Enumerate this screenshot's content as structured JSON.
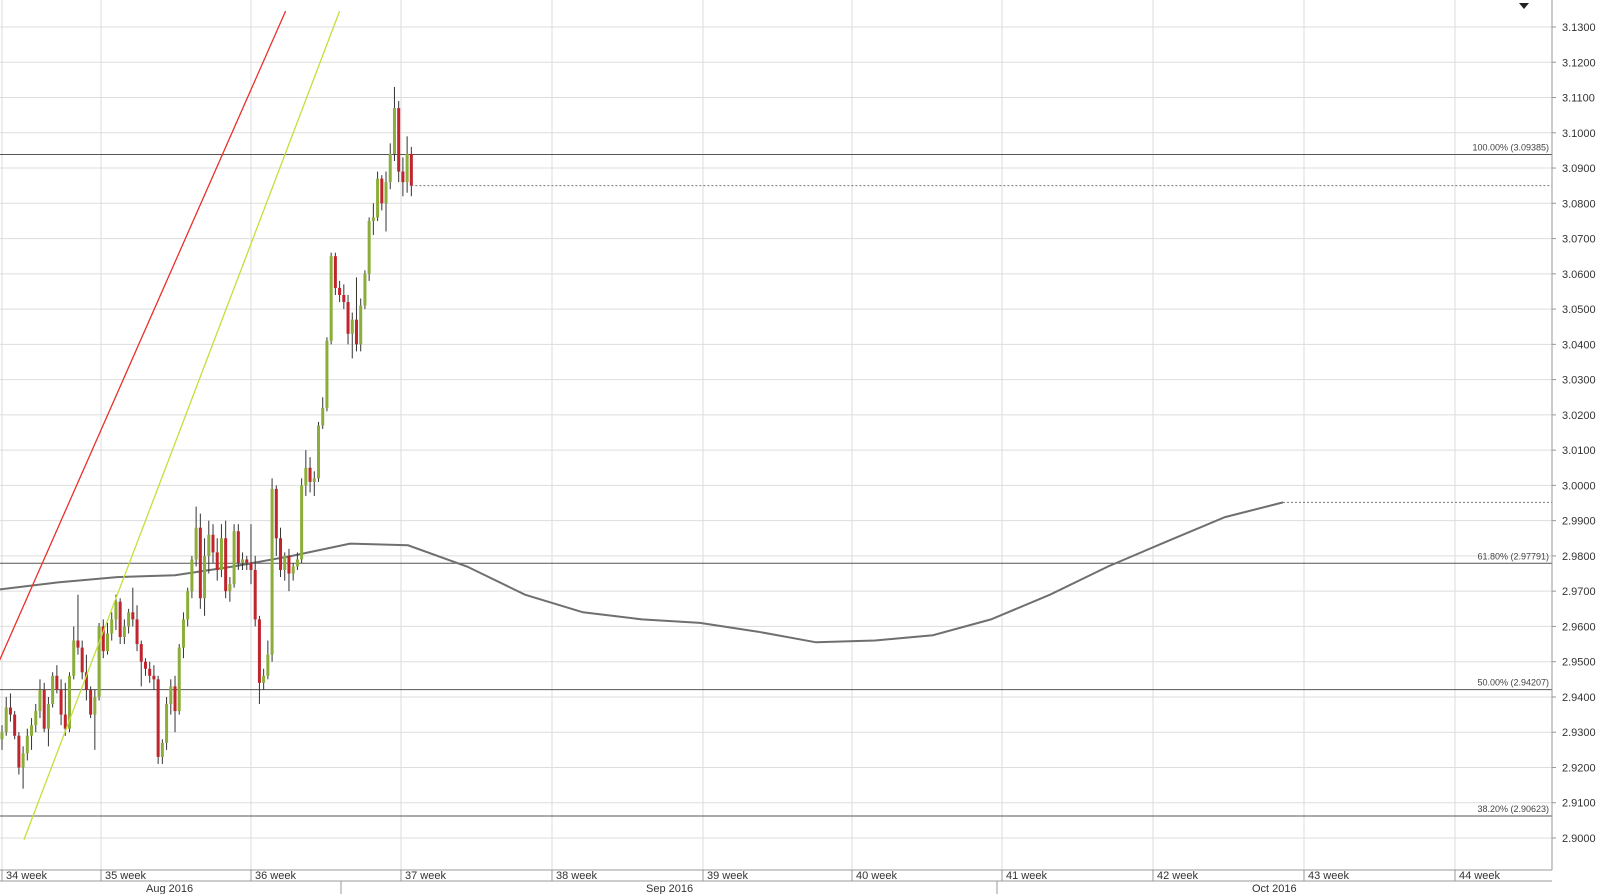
{
  "chart_data": {
    "type": "candlestick",
    "y_axis": {
      "min": 2.895,
      "max": 3.1345,
      "ticks": [
        "2.9000",
        "2.9100",
        "2.9200",
        "2.9300",
        "2.9400",
        "2.9500",
        "2.9600",
        "2.9700",
        "2.9800",
        "2.9900",
        "3.0000",
        "3.0100",
        "3.0200",
        "3.0300",
        "3.0400",
        "3.0500",
        "3.0600",
        "3.0700",
        "3.0800",
        "3.0900",
        "3.1000",
        "3.1100",
        "3.1200",
        "3.1300"
      ],
      "position": "right"
    },
    "x_axis": {
      "weeks": [
        "34 week",
        "35 week",
        "36 week",
        "37 week",
        "38 week",
        "39 week",
        "40 week",
        "41 week",
        "42 week",
        "43 week",
        "44 week"
      ],
      "months": [
        "Aug 2016",
        "Sep 2016",
        "Oct 2016"
      ]
    },
    "fib_levels": [
      {
        "label": "100.00% (3.09385)",
        "value": 3.09385
      },
      {
        "label": "61.80% (2.97791)",
        "value": 2.97791
      },
      {
        "label": "50.00% (2.94207)",
        "value": 2.94207
      },
      {
        "label": "38.20% (2.90623)",
        "value": 2.90623
      }
    ],
    "current_price": {
      "label": "3.08501",
      "value": 3.08501,
      "color": "#7a9a2a"
    },
    "moving_average_last": {
      "label": "2.99518",
      "value": 2.99518,
      "color": "#6f6f6f"
    },
    "ma_series": [
      2.9705,
      2.9725,
      2.974,
      2.9745,
      2.977,
      2.98,
      2.9835,
      2.983,
      2.977,
      2.969,
      2.964,
      2.962,
      2.961,
      2.9585,
      2.9555,
      2.956,
      2.9575,
      2.962,
      2.969,
      2.977,
      2.984,
      2.991,
      2.99518
    ],
    "channel_lines": [
      {
        "name": "upper",
        "color": "#e8312b",
        "points": [
          [
            -17.3,
            2.905
          ],
          [
            67.2,
            3.1345
          ]
        ]
      },
      {
        "name": "lower",
        "color": "#c3e03a",
        "points": [
          [
            5.2,
            2.8995
          ],
          [
            80.0,
            3.1345
          ]
        ]
      }
    ],
    "colors": {
      "bull": "#8bad3a",
      "bear": "#c0242c",
      "wick": "#333333",
      "grid": "#dddddd",
      "fib": "#555555"
    },
    "candles": [
      [
        2.928,
        2.932,
        2.925,
        2.93
      ],
      [
        2.93,
        2.94,
        2.929,
        2.937
      ],
      [
        2.937,
        2.941,
        2.933,
        2.935
      ],
      [
        2.935,
        2.936,
        2.928,
        2.929
      ],
      [
        2.929,
        2.93,
        2.918,
        2.92
      ],
      [
        2.92,
        2.926,
        2.914,
        2.924
      ],
      [
        2.924,
        2.931,
        2.922,
        2.929
      ],
      [
        2.929,
        2.934,
        2.925,
        2.932
      ],
      [
        2.932,
        2.938,
        2.93,
        2.936
      ],
      [
        2.936,
        2.945,
        2.934,
        2.942
      ],
      [
        2.942,
        2.944,
        2.93,
        2.931
      ],
      [
        2.931,
        2.94,
        2.926,
        2.938
      ],
      [
        2.938,
        2.947,
        2.937,
        2.946
      ],
      [
        2.946,
        2.949,
        2.941,
        2.942
      ],
      [
        2.942,
        2.945,
        2.932,
        2.935
      ],
      [
        2.935,
        2.944,
        2.929,
        2.931
      ],
      [
        2.931,
        2.947,
        2.93,
        2.946
      ],
      [
        2.946,
        2.96,
        2.945,
        2.956
      ],
      [
        2.956,
        2.969,
        2.952,
        2.954
      ],
      [
        2.954,
        2.956,
        2.945,
        2.947
      ],
      [
        2.947,
        2.952,
        2.939,
        2.942
      ],
      [
        2.942,
        2.943,
        2.934,
        2.935
      ],
      [
        2.935,
        2.942,
        2.925,
        2.94
      ],
      [
        2.94,
        2.961,
        2.939,
        2.96
      ],
      [
        2.96,
        2.962,
        2.951,
        2.953
      ],
      [
        2.953,
        2.961,
        2.952,
        2.958
      ],
      [
        2.958,
        2.964,
        2.956,
        2.962
      ],
      [
        2.962,
        2.969,
        2.959,
        2.967
      ],
      [
        2.967,
        2.968,
        2.955,
        2.957
      ],
      [
        2.957,
        2.962,
        2.955,
        2.96
      ],
      [
        2.96,
        2.965,
        2.958,
        2.964
      ],
      [
        2.964,
        2.971,
        2.96,
        2.962
      ],
      [
        2.962,
        2.966,
        2.953,
        2.955
      ],
      [
        2.955,
        2.956,
        2.943,
        2.95
      ],
      [
        2.95,
        2.951,
        2.946,
        2.948
      ],
      [
        2.948,
        2.95,
        2.944,
        2.946
      ],
      [
        2.946,
        2.949,
        2.942,
        2.945
      ],
      [
        2.945,
        2.946,
        2.921,
        2.923
      ],
      [
        2.923,
        2.928,
        2.921,
        2.927
      ],
      [
        2.927,
        2.94,
        2.925,
        2.938
      ],
      [
        2.938,
        2.945,
        2.935,
        2.943
      ],
      [
        2.943,
        2.946,
        2.93,
        2.936
      ],
      [
        2.936,
        2.955,
        2.935,
        2.954
      ],
      [
        2.954,
        2.964,
        2.951,
        2.962
      ],
      [
        2.962,
        2.971,
        2.96,
        2.97
      ],
      [
        2.97,
        2.98,
        2.968,
        2.979
      ],
      [
        2.979,
        2.994,
        2.977,
        2.988
      ],
      [
        2.988,
        2.992,
        2.965,
        2.968
      ],
      [
        2.968,
        2.985,
        2.963,
        2.98
      ],
      [
        2.98,
        2.99,
        2.975,
        2.986
      ],
      [
        2.986,
        2.989,
        2.978,
        2.981
      ],
      [
        2.981,
        2.985,
        2.973,
        2.976
      ],
      [
        2.976,
        2.989,
        2.974,
        2.985
      ],
      [
        2.985,
        2.99,
        2.968,
        2.97
      ],
      [
        2.97,
        2.974,
        2.967,
        2.972
      ],
      [
        2.972,
        2.989,
        2.971,
        2.987
      ],
      [
        2.987,
        2.989,
        2.976,
        2.978
      ],
      [
        2.978,
        2.981,
        2.976,
        2.979
      ],
      [
        2.979,
        2.98,
        2.976,
        2.978
      ],
      [
        2.978,
        2.989,
        2.972,
        2.976
      ],
      [
        2.976,
        2.98,
        2.96,
        2.962
      ],
      [
        2.962,
        2.963,
        2.938,
        2.944
      ],
      [
        2.944,
        2.948,
        2.942,
        2.946
      ],
      [
        2.946,
        2.956,
        2.945,
        2.952
      ],
      [
        2.952,
        3.002,
        2.95,
        2.999
      ],
      [
        2.999,
        3.0,
        2.98,
        2.985
      ],
      [
        2.985,
        2.988,
        2.974,
        2.976
      ],
      [
        2.976,
        2.981,
        2.973,
        2.98
      ],
      [
        2.98,
        2.982,
        2.97,
        2.975
      ],
      [
        2.975,
        2.978,
        2.973,
        2.977
      ],
      [
        2.977,
        2.981,
        2.976,
        2.979
      ],
      [
        2.979,
        3.002,
        2.978,
        3.0
      ],
      [
        3.0,
        3.01,
        2.997,
        3.005
      ],
      [
        3.005,
        3.008,
        2.998,
        3.001
      ],
      [
        3.001,
        3.004,
        2.997,
        3.002
      ],
      [
        3.002,
        3.018,
        3.001,
        3.017
      ],
      [
        3.017,
        3.025,
        3.016,
        3.022
      ],
      [
        3.022,
        3.042,
        3.021,
        3.041
      ],
      [
        3.041,
        3.066,
        3.04,
        3.065
      ],
      [
        3.065,
        3.066,
        3.054,
        3.056
      ],
      [
        3.056,
        3.058,
        3.052,
        3.054
      ],
      [
        3.054,
        3.057,
        3.05,
        3.052
      ],
      [
        3.052,
        3.054,
        3.04,
        3.043
      ],
      [
        3.043,
        3.049,
        3.036,
        3.047
      ],
      [
        3.047,
        3.059,
        3.038,
        3.04
      ],
      [
        3.04,
        3.053,
        3.038,
        3.051
      ],
      [
        3.051,
        3.061,
        3.05,
        3.06
      ],
      [
        3.06,
        3.076,
        3.058,
        3.075
      ],
      [
        3.075,
        3.08,
        3.071,
        3.076
      ],
      [
        3.076,
        3.089,
        3.075,
        3.087
      ],
      [
        3.087,
        3.088,
        3.078,
        3.08
      ],
      [
        3.08,
        3.089,
        3.072,
        3.086
      ],
      [
        3.086,
        3.097,
        3.084,
        3.094
      ],
      [
        3.094,
        3.113,
        3.092,
        3.107
      ],
      [
        3.107,
        3.109,
        3.086,
        3.089
      ],
      [
        3.089,
        3.093,
        3.082,
        3.086
      ],
      [
        3.086,
        3.099,
        3.083,
        3.094
      ],
      [
        3.094,
        3.096,
        3.082,
        3.085
      ]
    ]
  }
}
